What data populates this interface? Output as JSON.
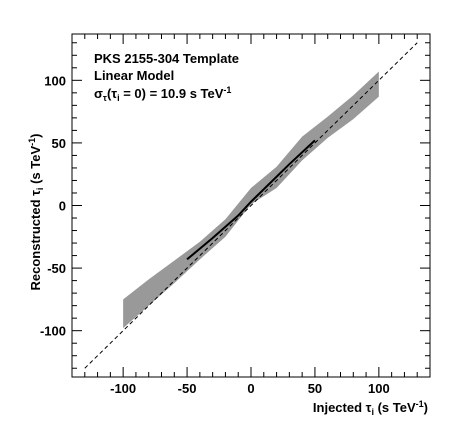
{
  "chart_data": {
    "type": "line",
    "title": "",
    "annotations": {
      "line1": "PKS 2155-304 Template",
      "line2": "Linear Model",
      "line3_sigma": "σ",
      "line3_sub_tau": "τ",
      "line3_paren_open": "(τ",
      "line3_sub_i": "i",
      "line3_rest": " = 0) = 10.9 s TeV",
      "line3_sup": "-1"
    },
    "xlabel": {
      "main": "Injected τ",
      "sub": "i",
      "unit": " (s TeV",
      "sup": "-1",
      "close": ")"
    },
    "ylabel": {
      "main": "Reconstructed τ",
      "sub": "i",
      "unit": " (s TeV",
      "sup": "-1",
      "close": ")"
    },
    "xlim": [
      -140,
      140
    ],
    "ylim": [
      -137,
      137
    ],
    "x_ticks": [
      -100,
      -50,
      0,
      50,
      100
    ],
    "y_ticks": [
      -100,
      -50,
      0,
      50,
      100
    ],
    "x_tick_labels": [
      "-100",
      "-50",
      "0",
      "50",
      "100"
    ],
    "y_tick_labels": [
      "-100",
      "-50",
      "0",
      "50",
      "100"
    ],
    "band": {
      "x": [
        -100,
        -80,
        -60,
        -40,
        -20,
        0,
        20,
        40,
        60,
        80,
        100
      ],
      "upper": [
        -75,
        -59,
        -44,
        -29,
        -11,
        14,
        31,
        55,
        71,
        88,
        107
      ],
      "lower": [
        -98,
        -80,
        -62,
        -43,
        -25,
        1,
        14,
        36,
        54,
        69,
        87
      ]
    },
    "mean_line": {
      "x": [
        -50,
        -30,
        -10,
        0,
        10,
        30,
        50
      ],
      "y": [
        -43,
        -26,
        -8,
        3,
        13,
        33,
        52
      ]
    },
    "identity_line": {
      "x": [
        -130,
        130
      ],
      "y": [
        -130,
        130
      ]
    },
    "colors": {
      "band": "#999999",
      "mean_line": "#000000",
      "identity_line": "#000000",
      "axes": "#000000"
    }
  }
}
